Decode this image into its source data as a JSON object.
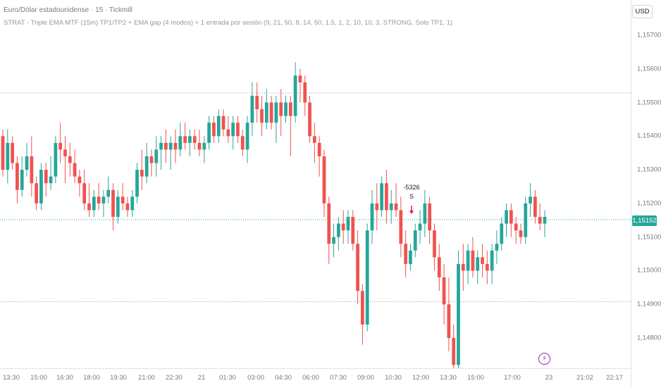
{
  "header": {
    "title": "Euro/Dólar estadounidense · 15 · Tickmill",
    "strategy": "STRAT - Triple EMA MTF (15m) TP1/TP2 + EMA gap (4 modos) + 1 entrada por sesión (9, 21, 50, 8, 14, 50, 1.5, 1, 2, 10, 10, 3, STRONG, Solo TP1, 1)",
    "currency": "USD"
  },
  "price_axis": {
    "ticks": [
      "1,15700",
      "1,15600",
      "1,15500",
      "1,15400",
      "1,15300",
      "1,15200",
      "1,15100",
      "1,15000",
      "1,14900",
      "1,14800"
    ],
    "current_price": "1,15152"
  },
  "time_axis": {
    "ticks": [
      "13:30",
      "15:00",
      "16:30",
      "18:00",
      "19:30",
      "21:00",
      "22:30",
      "21",
      "01:30",
      "03:00",
      "04:30",
      "06:00",
      "07:30",
      "09:00",
      "10:30",
      "12:00",
      "13:30",
      "15:00",
      "17:00",
      "23",
      "21:02",
      "22:17"
    ]
  },
  "signal": {
    "pnl": "-5326",
    "letter": "S"
  },
  "colors": {
    "up": "#26a69a",
    "down": "#ef5350",
    "signal_arrow": "#d81b60",
    "bolt": "#9c27b0"
  },
  "icons": [
    "lightning-icon",
    "down-arrow-icon"
  ],
  "chart_data": {
    "type": "candlestick",
    "y_range": [
      1.1476,
      1.1576
    ],
    "horizontal_levels": [
      1.15528,
      1.15152,
      1.14908
    ],
    "candles": [
      [
        1.154,
        1.1542,
        1.1528,
        1.153
      ],
      [
        1.153,
        1.1542,
        1.1526,
        1.1538
      ],
      [
        1.1538,
        1.154,
        1.153,
        1.1532
      ],
      [
        1.1532,
        1.1534,
        1.152,
        1.1524
      ],
      [
        1.1524,
        1.1534,
        1.1522,
        1.153
      ],
      [
        1.153,
        1.1538,
        1.1528,
        1.1534
      ],
      [
        1.1534,
        1.154,
        1.1522,
        1.1526
      ],
      [
        1.1526,
        1.1528,
        1.1518,
        1.152
      ],
      [
        1.152,
        1.1532,
        1.1518,
        1.153
      ],
      [
        1.153,
        1.1532,
        1.1522,
        1.1526
      ],
      [
        1.1526,
        1.1534,
        1.1524,
        1.1528
      ],
      [
        1.1528,
        1.154,
        1.1526,
        1.1538
      ],
      [
        1.1538,
        1.1544,
        1.1532,
        1.1536
      ],
      [
        1.1536,
        1.154,
        1.1526,
        1.1534
      ],
      [
        1.1534,
        1.1538,
        1.1528,
        1.1532
      ],
      [
        1.1532,
        1.1536,
        1.1526,
        1.1528
      ],
      [
        1.1528,
        1.153,
        1.1522,
        1.1526
      ],
      [
        1.1526,
        1.153,
        1.1518,
        1.152
      ],
      [
        1.152,
        1.1526,
        1.1516,
        1.1518
      ],
      [
        1.1518,
        1.1524,
        1.1516,
        1.1522
      ],
      [
        1.1522,
        1.1526,
        1.1518,
        1.152
      ],
      [
        1.152,
        1.1524,
        1.1516,
        1.1522
      ],
      [
        1.1522,
        1.1528,
        1.152,
        1.1524
      ],
      [
        1.1524,
        1.1526,
        1.1512,
        1.1516
      ],
      [
        1.1516,
        1.1524,
        1.1514,
        1.1522
      ],
      [
        1.1522,
        1.1526,
        1.1518,
        1.152
      ],
      [
        1.152,
        1.1522,
        1.1516,
        1.1518
      ],
      [
        1.1518,
        1.1524,
        1.1516,
        1.1522
      ],
      [
        1.1522,
        1.1532,
        1.152,
        1.153
      ],
      [
        1.153,
        1.1536,
        1.1524,
        1.1528
      ],
      [
        1.1528,
        1.1538,
        1.1526,
        1.1534
      ],
      [
        1.1534,
        1.1536,
        1.1528,
        1.1532
      ],
      [
        1.1532,
        1.154,
        1.1528,
        1.1536
      ],
      [
        1.1536,
        1.154,
        1.153,
        1.1538
      ],
      [
        1.1538,
        1.1542,
        1.1532,
        1.1536
      ],
      [
        1.1536,
        1.154,
        1.153,
        1.1538
      ],
      [
        1.1538,
        1.1542,
        1.1532,
        1.1536
      ],
      [
        1.1536,
        1.1544,
        1.1534,
        1.154
      ],
      [
        1.154,
        1.1544,
        1.1536,
        1.1538
      ],
      [
        1.1538,
        1.1542,
        1.1534,
        1.154
      ],
      [
        1.154,
        1.1542,
        1.1536,
        1.1538
      ],
      [
        1.1538,
        1.1542,
        1.1534,
        1.1536
      ],
      [
        1.1536,
        1.154,
        1.1532,
        1.1538
      ],
      [
        1.1538,
        1.1546,
        1.1536,
        1.1544
      ],
      [
        1.1544,
        1.1546,
        1.1538,
        1.154
      ],
      [
        1.154,
        1.1548,
        1.1538,
        1.1546
      ],
      [
        1.1546,
        1.1548,
        1.154,
        1.1542
      ],
      [
        1.1542,
        1.1546,
        1.1538,
        1.154
      ],
      [
        1.154,
        1.1546,
        1.1536,
        1.1544
      ],
      [
        1.1544,
        1.1546,
        1.1538,
        1.154
      ],
      [
        1.154,
        1.1542,
        1.1534,
        1.1536
      ],
      [
        1.1536,
        1.1546,
        1.1532,
        1.1544
      ],
      [
        1.1544,
        1.1556,
        1.154,
        1.1552
      ],
      [
        1.1552,
        1.1556,
        1.1544,
        1.1548
      ],
      [
        1.1548,
        1.1552,
        1.154,
        1.1544
      ],
      [
        1.1544,
        1.1554,
        1.1542,
        1.155
      ],
      [
        1.155,
        1.1552,
        1.1542,
        1.1544
      ],
      [
        1.1544,
        1.1552,
        1.1538,
        1.155
      ],
      [
        1.155,
        1.1554,
        1.154,
        1.1546
      ],
      [
        1.1546,
        1.1552,
        1.1544,
        1.155
      ],
      [
        1.155,
        1.1552,
        1.1534,
        1.1546
      ],
      [
        1.1546,
        1.1562,
        1.1544,
        1.1558
      ],
      [
        1.1558,
        1.156,
        1.155,
        1.1556
      ],
      [
        1.1556,
        1.1558,
        1.1546,
        1.155
      ],
      [
        1.155,
        1.1552,
        1.1538,
        1.154
      ],
      [
        1.154,
        1.1544,
        1.1532,
        1.1538
      ],
      [
        1.1538,
        1.154,
        1.1528,
        1.1534
      ],
      [
        1.1534,
        1.1536,
        1.1516,
        1.152
      ],
      [
        1.152,
        1.1522,
        1.1502,
        1.1508
      ],
      [
        1.1508,
        1.1514,
        1.1504,
        1.151
      ],
      [
        1.151,
        1.1516,
        1.1506,
        1.1514
      ],
      [
        1.1514,
        1.1518,
        1.1508,
        1.1512
      ],
      [
        1.1512,
        1.1518,
        1.1508,
        1.1516
      ],
      [
        1.1516,
        1.1518,
        1.1506,
        1.1508
      ],
      [
        1.1508,
        1.1512,
        1.149,
        1.1494
      ],
      [
        1.1494,
        1.1496,
        1.1478,
        1.1484
      ],
      [
        1.1484,
        1.1514,
        1.1482,
        1.1512
      ],
      [
        1.1512,
        1.1524,
        1.1508,
        1.152
      ],
      [
        1.152,
        1.1526,
        1.1512,
        1.1518
      ],
      [
        1.1518,
        1.1528,
        1.1516,
        1.1526
      ],
      [
        1.1526,
        1.153,
        1.1514,
        1.1518
      ],
      [
        1.1518,
        1.1524,
        1.1514,
        1.152
      ],
      [
        1.152,
        1.1526,
        1.1516,
        1.1518
      ],
      [
        1.1518,
        1.1522,
        1.1504,
        1.1508
      ],
      [
        1.1508,
        1.1512,
        1.1498,
        1.1502
      ],
      [
        1.1502,
        1.1508,
        1.15,
        1.1506
      ],
      [
        1.1506,
        1.1514,
        1.1504,
        1.1512
      ],
      [
        1.1512,
        1.1518,
        1.1508,
        1.1514
      ],
      [
        1.1514,
        1.1524,
        1.151,
        1.152
      ],
      [
        1.152,
        1.1522,
        1.1508,
        1.1512
      ],
      [
        1.1512,
        1.1514,
        1.15,
        1.1504
      ],
      [
        1.1504,
        1.1508,
        1.1494,
        1.1498
      ],
      [
        1.1498,
        1.1502,
        1.1484,
        1.149
      ],
      [
        1.149,
        1.1498,
        1.1476,
        1.148
      ],
      [
        1.148,
        1.1484,
        1.147,
        1.1472
      ],
      [
        1.1472,
        1.1506,
        1.147,
        1.1502
      ],
      [
        1.1502,
        1.1508,
        1.1494,
        1.15
      ],
      [
        1.15,
        1.1508,
        1.1496,
        1.1506
      ],
      [
        1.1506,
        1.151,
        1.1498,
        1.15
      ],
      [
        1.15,
        1.1506,
        1.1496,
        1.1504
      ],
      [
        1.1504,
        1.1508,
        1.1498,
        1.1502
      ],
      [
        1.1502,
        1.1506,
        1.1496,
        1.15
      ],
      [
        1.15,
        1.1508,
        1.1496,
        1.1506
      ],
      [
        1.1506,
        1.1512,
        1.1502,
        1.1508
      ],
      [
        1.1508,
        1.1516,
        1.1506,
        1.1514
      ],
      [
        1.1514,
        1.152,
        1.151,
        1.1518
      ],
      [
        1.1518,
        1.152,
        1.151,
        1.1514
      ],
      [
        1.1514,
        1.1516,
        1.1508,
        1.1512
      ],
      [
        1.1512,
        1.1514,
        1.1508,
        1.151
      ],
      [
        1.151,
        1.1522,
        1.1508,
        1.152
      ],
      [
        1.152,
        1.1526,
        1.1516,
        1.1522
      ],
      [
        1.1522,
        1.1524,
        1.1514,
        1.1516
      ],
      [
        1.1516,
        1.152,
        1.1512,
        1.1514
      ],
      [
        1.1514,
        1.1518,
        1.151,
        1.1516
      ]
    ]
  }
}
